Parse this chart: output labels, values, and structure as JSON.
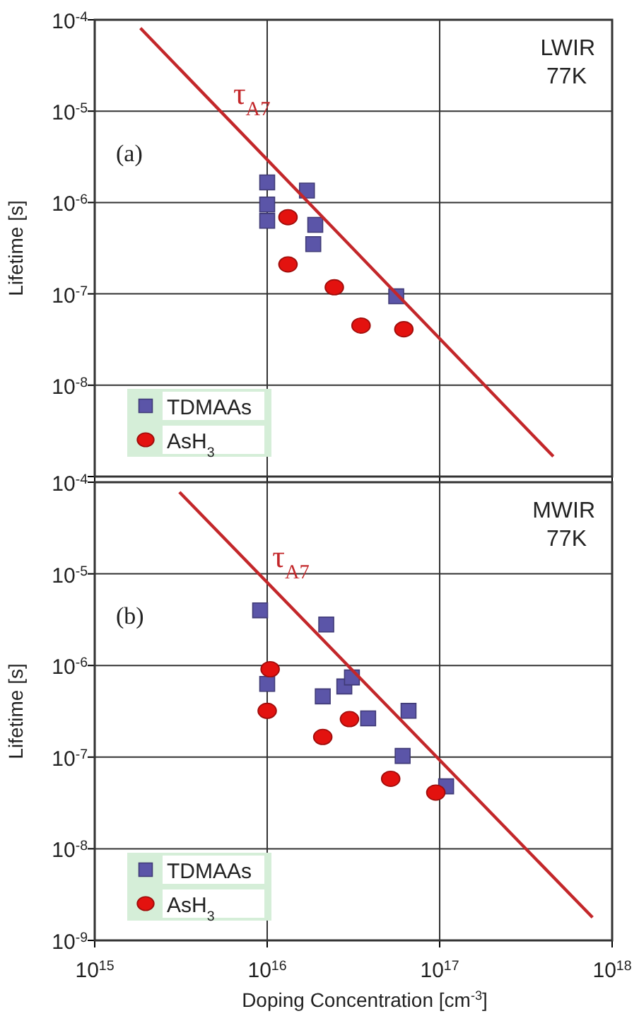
{
  "chart_data": [
    {
      "type": "scatter",
      "ylabel": "Lifetime [s]",
      "log": "xy",
      "grid": true,
      "legend": "bottom left",
      "tick_labels": "y",
      "xlim": [
        1000000000000000.0,
        1e+18
      ],
      "xticks": [
        {
          "value": 1000000000000000.0,
          "label": null
        },
        {
          "value": 1e+16,
          "label": null
        },
        {
          "value": 1e+17,
          "label": null
        },
        {
          "value": 1e+18,
          "label": null
        }
      ],
      "ylim": [
        1e-09,
        0.0001
      ],
      "yticks": [
        {
          "value": 1e-09,
          "label": null
        },
        {
          "value": 1e-08,
          "label": "10$^{-8}$"
        },
        {
          "value": 1e-07,
          "label": "10$^{-7}$"
        },
        {
          "value": 1e-06,
          "label": "10$^{-6}$"
        },
        {
          "value": 1e-05,
          "label": "10$^{-5}$"
        },
        {
          "value": 0.0001,
          "label": "10$^{-4}$"
        }
      ],
      "annotations": [
        "LWIR\n77K",
        "(a)"
      ],
      "series": [
        {
          "name": "TDMAAs",
          "marker": "square",
          "color": "#5b55a8",
          "x": [
            1e+16,
            1e+16,
            1e+16,
            1.7e+16,
            1.9e+16,
            1.85e+16,
            5.6e+16
          ],
          "values": [
            1.66e-06,
            9.5e-07,
            6.3e-07,
            1.35e-06,
            5.7e-07,
            3.5e-07,
            9.4e-08
          ]
        },
        {
          "name": "AsH$_{3}$",
          "marker": "circle",
          "color": "#e3120f",
          "x": [
            1.32e+16,
            1.32e+16,
            2.45e+16,
            3.5e+16,
            6.2e+16
          ],
          "values": [
            6.9e-07,
            2.1e-07,
            1.18e-07,
            4.5e-08,
            4.1e-08
          ]
        },
        {
          "name": "τ$_{A7}$",
          "type": "line",
          "color": "#c3272a",
          "x": [
            1840000000000000.0,
            4.56e+17
          ],
          "values": [
            8.1e-05,
            1.66e-09
          ]
        }
      ]
    },
    {
      "type": "scatter",
      "xlabel": "Doping Concentration [cm$^{-3}$]",
      "ylabel": "Lifetime [s]",
      "log": "xy",
      "grid": true,
      "legend": "bottom left",
      "xlim": [
        1000000000000000.0,
        1e+18
      ],
      "xticks": [
        {
          "value": 1000000000000000.0,
          "label": "10$^{15}$"
        },
        {
          "value": 1e+16,
          "label": "10$^{16}$"
        },
        {
          "value": 1e+17,
          "label": "10$^{17}$"
        },
        {
          "value": 1e+18,
          "label": "10$^{18}$"
        }
      ],
      "ylim": [
        1e-09,
        0.0001
      ],
      "yticks": [
        {
          "value": 1e-09,
          "label": "10$^{-9}$"
        },
        {
          "value": 1e-08,
          "label": "10$^{-8}$"
        },
        {
          "value": 1e-07,
          "label": "10$^{-7}$"
        },
        {
          "value": 1e-06,
          "label": "10$^{-6}$"
        },
        {
          "value": 1e-05,
          "label": "10$^{-5}$"
        },
        {
          "value": 0.0001,
          "label": "10$^{-4}$"
        }
      ],
      "annotations": [
        "MWIR\n77K",
        "(b)"
      ],
      "series": [
        {
          "name": "TDMAAs",
          "marker": "square",
          "color": "#5b55a8",
          "x": [
            9100000000000000.0,
            1e+16,
            2.2e+16,
            2.1e+16,
            2.8e+16,
            3.1e+16,
            3.85e+16,
            6.6e+16,
            6.1e+16,
            1.09e+17
          ],
          "values": [
            4e-06,
            6.3e-07,
            2.8e-06,
            4.6e-07,
            5.9e-07,
            7.4e-07,
            2.65e-07,
            3.2e-07,
            1.03e-07,
            4.8e-08
          ]
        },
        {
          "name": "AsH$_{3}$",
          "marker": "circle",
          "color": "#e3120f",
          "x": [
            1.04e+16,
            1e+16,
            2.1e+16,
            3e+16,
            5.2e+16,
            9.5e+16
          ],
          "values": [
            9.1e-07,
            3.2e-07,
            1.66e-07,
            2.6e-07,
            5.8e-08,
            4.1e-08
          ]
        },
        {
          "name": "τ$_{A7}$",
          "type": "line",
          "color": "#c3272a",
          "x": [
            3100000000000000.0,
            7.7e+17
          ],
          "values": [
            7.8e-05,
            1.78e-09
          ]
        }
      ]
    }
  ]
}
